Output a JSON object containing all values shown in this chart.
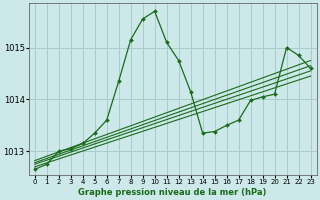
{
  "title": "Graphe pression niveau de la mer (hPa)",
  "background_color": "#cce8e8",
  "grid_color": "#aacccc",
  "line_color": "#1a6b1a",
  "xlim": [
    -0.5,
    23.5
  ],
  "ylim": [
    1012.55,
    1015.85
  ],
  "yticks": [
    1013,
    1014,
    1015
  ],
  "xticks": [
    0,
    1,
    2,
    3,
    4,
    5,
    6,
    7,
    8,
    9,
    10,
    11,
    12,
    13,
    14,
    15,
    16,
    17,
    18,
    19,
    20,
    21,
    22,
    23
  ],
  "series": [
    {
      "x": [
        0,
        1,
        2,
        3,
        4,
        5,
        6,
        7,
        8,
        9,
        10,
        11,
        12,
        13,
        14,
        15,
        16,
        17,
        18,
        19,
        20,
        21,
        22,
        23
      ],
      "y": [
        1012.65,
        1012.75,
        1013.0,
        1013.05,
        1013.15,
        1013.35,
        1013.6,
        1014.35,
        1015.15,
        1015.55,
        1015.7,
        1015.1,
        1014.75,
        1014.15,
        1013.35,
        1013.38,
        1013.5,
        1013.6,
        1013.98,
        1014.05,
        1014.1,
        1015.0,
        1014.85,
        1014.6
      ]
    },
    {
      "x": [
        0,
        23
      ],
      "y": [
        1012.7,
        1014.45
      ]
    },
    {
      "x": [
        0,
        23
      ],
      "y": [
        1012.75,
        1014.55
      ]
    },
    {
      "x": [
        0,
        23
      ],
      "y": [
        1012.78,
        1014.65
      ]
    },
    {
      "x": [
        0,
        23
      ],
      "y": [
        1012.82,
        1014.75
      ]
    }
  ]
}
